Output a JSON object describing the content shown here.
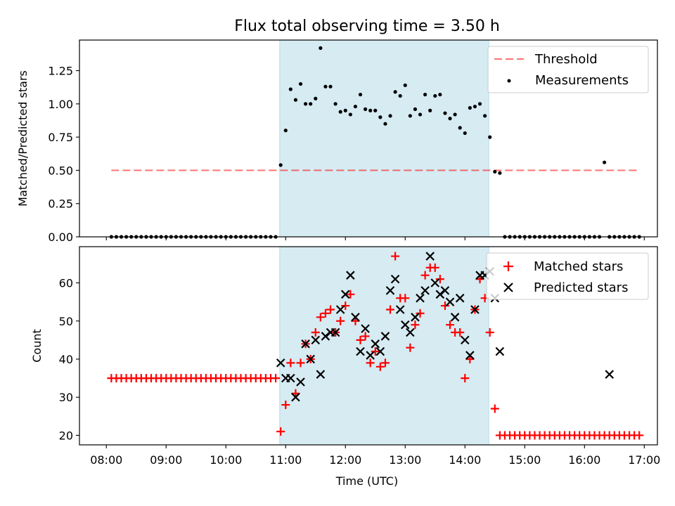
{
  "title": "Flux total observing time = 3.50 h",
  "xlabel": "Time (UTC)",
  "x_ticks": [
    "08:00",
    "09:00",
    "10:00",
    "11:00",
    "12:00",
    "13:00",
    "14:00",
    "15:00",
    "16:00",
    "17:00"
  ],
  "colors": {
    "threshold": "#ff0000",
    "measurements": "#000000",
    "matched": "#ff0000",
    "predicted": "#000000",
    "span_fill": "#add8e6"
  },
  "chart_data": [
    {
      "type": "scatter",
      "ylabel": "Matched/Predicted stars",
      "xlim": [
        7.55,
        17.22
      ],
      "ylim": [
        0,
        1.48
      ],
      "y_ticks": [
        "0.00",
        "0.25",
        "0.50",
        "0.75",
        "1.00",
        "1.25"
      ],
      "y_tick_values": [
        0,
        0.25,
        0.5,
        0.75,
        1.0,
        1.25
      ],
      "legend": "upper right",
      "highlight_span": [
        "10:54",
        "14:24"
      ],
      "threshold": {
        "name": "Threshold",
        "value": 0.5,
        "x_range": [
          "08:05",
          "16:55"
        ],
        "style": "dashed"
      },
      "series": [
        {
          "name": "Measurements",
          "marker": "dot",
          "x": [
            "08:05",
            "08:10",
            "08:15",
            "08:20",
            "08:25",
            "08:30",
            "08:35",
            "08:40",
            "08:45",
            "08:50",
            "08:55",
            "09:00",
            "09:05",
            "09:10",
            "09:15",
            "09:20",
            "09:25",
            "09:30",
            "09:35",
            "09:40",
            "09:45",
            "09:50",
            "09:55",
            "10:00",
            "10:05",
            "10:10",
            "10:15",
            "10:20",
            "10:25",
            "10:30",
            "10:35",
            "10:40",
            "10:45",
            "10:50",
            "10:55",
            "11:00",
            "11:05",
            "11:10",
            "11:15",
            "11:20",
            "11:25",
            "11:30",
            "11:35",
            "11:40",
            "11:45",
            "11:50",
            "11:55",
            "12:00",
            "12:05",
            "12:10",
            "12:15",
            "12:20",
            "12:25",
            "12:30",
            "12:35",
            "12:40",
            "12:45",
            "12:50",
            "12:55",
            "13:00",
            "13:05",
            "13:10",
            "13:15",
            "13:20",
            "13:25",
            "13:30",
            "13:35",
            "13:40",
            "13:45",
            "13:50",
            "13:55",
            "14:00",
            "14:05",
            "14:10",
            "14:15",
            "14:20",
            "14:25",
            "14:30",
            "14:35",
            "14:40",
            "14:45",
            "14:50",
            "14:55",
            "15:00",
            "15:05",
            "15:10",
            "15:15",
            "15:20",
            "15:25",
            "15:30",
            "15:35",
            "15:40",
            "15:45",
            "15:50",
            "15:55",
            "16:00",
            "16:05",
            "16:10",
            "16:15",
            "16:20",
            "16:25",
            "16:30",
            "16:35",
            "16:40",
            "16:45",
            "16:50",
            "16:55"
          ],
          "y": [
            0,
            0,
            0,
            0,
            0,
            0,
            0,
            0,
            0,
            0,
            0,
            0,
            0,
            0,
            0,
            0,
            0,
            0,
            0,
            0,
            0,
            0,
            0,
            0,
            0,
            0,
            0,
            0,
            0,
            0,
            0,
            0,
            0,
            0,
            0.54,
            0.8,
            1.11,
            1.03,
            1.15,
            1.0,
            1.0,
            1.04,
            1.42,
            1.13,
            1.13,
            1.0,
            0.94,
            0.95,
            0.92,
            0.98,
            1.07,
            0.96,
            0.95,
            0.95,
            0.9,
            0.85,
            0.91,
            1.09,
            1.06,
            1.14,
            0.91,
            0.96,
            0.92,
            1.07,
            0.95,
            1.06,
            1.07,
            0.93,
            0.89,
            0.92,
            0.82,
            0.78,
            0.97,
            0.98,
            1.0,
            0.91,
            0.75,
            0.49,
            0.48,
            0,
            0,
            0,
            0,
            0,
            0,
            0,
            0,
            0,
            0,
            0,
            0,
            0,
            0,
            0,
            0,
            0,
            0,
            0,
            0,
            0.56,
            0,
            0,
            0,
            0,
            0,
            0,
            0
          ]
        }
      ]
    },
    {
      "type": "scatter",
      "ylabel": "Count",
      "xlim": [
        7.55,
        17.22
      ],
      "ylim": [
        17.5,
        69.5
      ],
      "y_ticks": [
        "20",
        "30",
        "40",
        "50",
        "60"
      ],
      "y_tick_values": [
        20,
        30,
        40,
        50,
        60
      ],
      "legend": "upper right",
      "highlight_span": [
        "10:54",
        "14:24"
      ],
      "series": [
        {
          "name": "Matched stars",
          "marker": "plus",
          "x": [
            "08:05",
            "08:10",
            "08:15",
            "08:20",
            "08:25",
            "08:30",
            "08:35",
            "08:40",
            "08:45",
            "08:50",
            "08:55",
            "09:00",
            "09:05",
            "09:10",
            "09:15",
            "09:20",
            "09:25",
            "09:30",
            "09:35",
            "09:40",
            "09:45",
            "09:50",
            "09:55",
            "10:00",
            "10:05",
            "10:10",
            "10:15",
            "10:20",
            "10:25",
            "10:30",
            "10:35",
            "10:40",
            "10:45",
            "10:50",
            "10:55",
            "11:00",
            "11:05",
            "11:10",
            "11:15",
            "11:20",
            "11:25",
            "11:30",
            "11:35",
            "11:40",
            "11:45",
            "11:50",
            "11:55",
            "12:00",
            "12:05",
            "12:10",
            "12:15",
            "12:20",
            "12:25",
            "12:30",
            "12:35",
            "12:40",
            "12:45",
            "12:50",
            "12:55",
            "13:00",
            "13:05",
            "13:10",
            "13:15",
            "13:20",
            "13:25",
            "13:30",
            "13:35",
            "13:40",
            "13:45",
            "13:50",
            "13:55",
            "14:00",
            "14:05",
            "14:10",
            "14:15",
            "14:20",
            "14:25",
            "14:30",
            "14:35",
            "14:40",
            "14:45",
            "14:50",
            "14:55",
            "15:00",
            "15:05",
            "15:10",
            "15:15",
            "15:20",
            "15:25",
            "15:30",
            "15:35",
            "15:40",
            "15:45",
            "15:50",
            "15:55",
            "16:00",
            "16:05",
            "16:10",
            "16:15",
            "16:20",
            "16:25",
            "16:30",
            "16:35",
            "16:40",
            "16:45",
            "16:50",
            "16:55"
          ],
          "y": [
            35,
            35,
            35,
            35,
            35,
            35,
            35,
            35,
            35,
            35,
            35,
            35,
            35,
            35,
            35,
            35,
            35,
            35,
            35,
            35,
            35,
            35,
            35,
            35,
            35,
            35,
            35,
            35,
            35,
            35,
            35,
            35,
            35,
            35,
            21,
            28,
            39,
            31,
            39,
            44,
            40,
            47,
            51,
            52,
            53,
            47,
            50,
            54,
            57,
            50,
            45,
            46,
            39,
            42,
            38,
            39,
            53,
            67,
            56,
            56,
            43,
            49,
            52,
            62,
            64,
            64,
            61,
            54,
            49,
            47,
            47,
            35,
            40,
            53,
            61,
            56,
            47,
            27,
            20,
            20,
            20,
            20,
            20,
            20,
            20,
            20,
            20,
            20,
            20,
            20,
            20,
            20,
            20,
            20,
            20,
            20,
            20,
            20,
            20,
            20,
            20,
            20,
            20,
            20,
            20,
            20,
            20
          ]
        },
        {
          "name": "Predicted stars",
          "marker": "x",
          "x": [
            "10:55",
            "11:00",
            "11:05",
            "11:10",
            "11:15",
            "11:20",
            "11:25",
            "11:30",
            "11:35",
            "11:40",
            "11:45",
            "11:50",
            "11:55",
            "12:00",
            "12:05",
            "12:10",
            "12:15",
            "12:20",
            "12:25",
            "12:30",
            "12:35",
            "12:40",
            "12:45",
            "12:50",
            "12:55",
            "13:00",
            "13:05",
            "13:10",
            "13:15",
            "13:20",
            "13:25",
            "13:30",
            "13:35",
            "13:40",
            "13:45",
            "13:50",
            "13:55",
            "14:00",
            "14:05",
            "14:10",
            "14:15",
            "14:20",
            "14:25",
            "14:30",
            "14:35",
            "16:25"
          ],
          "y": [
            39,
            35,
            35,
            30,
            34,
            44,
            40,
            45,
            36,
            46,
            47,
            47,
            53,
            57,
            62,
            51,
            42,
            48,
            41,
            44,
            42,
            46,
            58,
            61,
            53,
            49,
            47,
            51,
            56,
            58,
            67,
            60,
            57,
            58,
            55,
            51,
            56,
            45,
            41,
            53,
            62,
            62,
            63,
            56,
            42,
            36
          ]
        }
      ]
    }
  ]
}
